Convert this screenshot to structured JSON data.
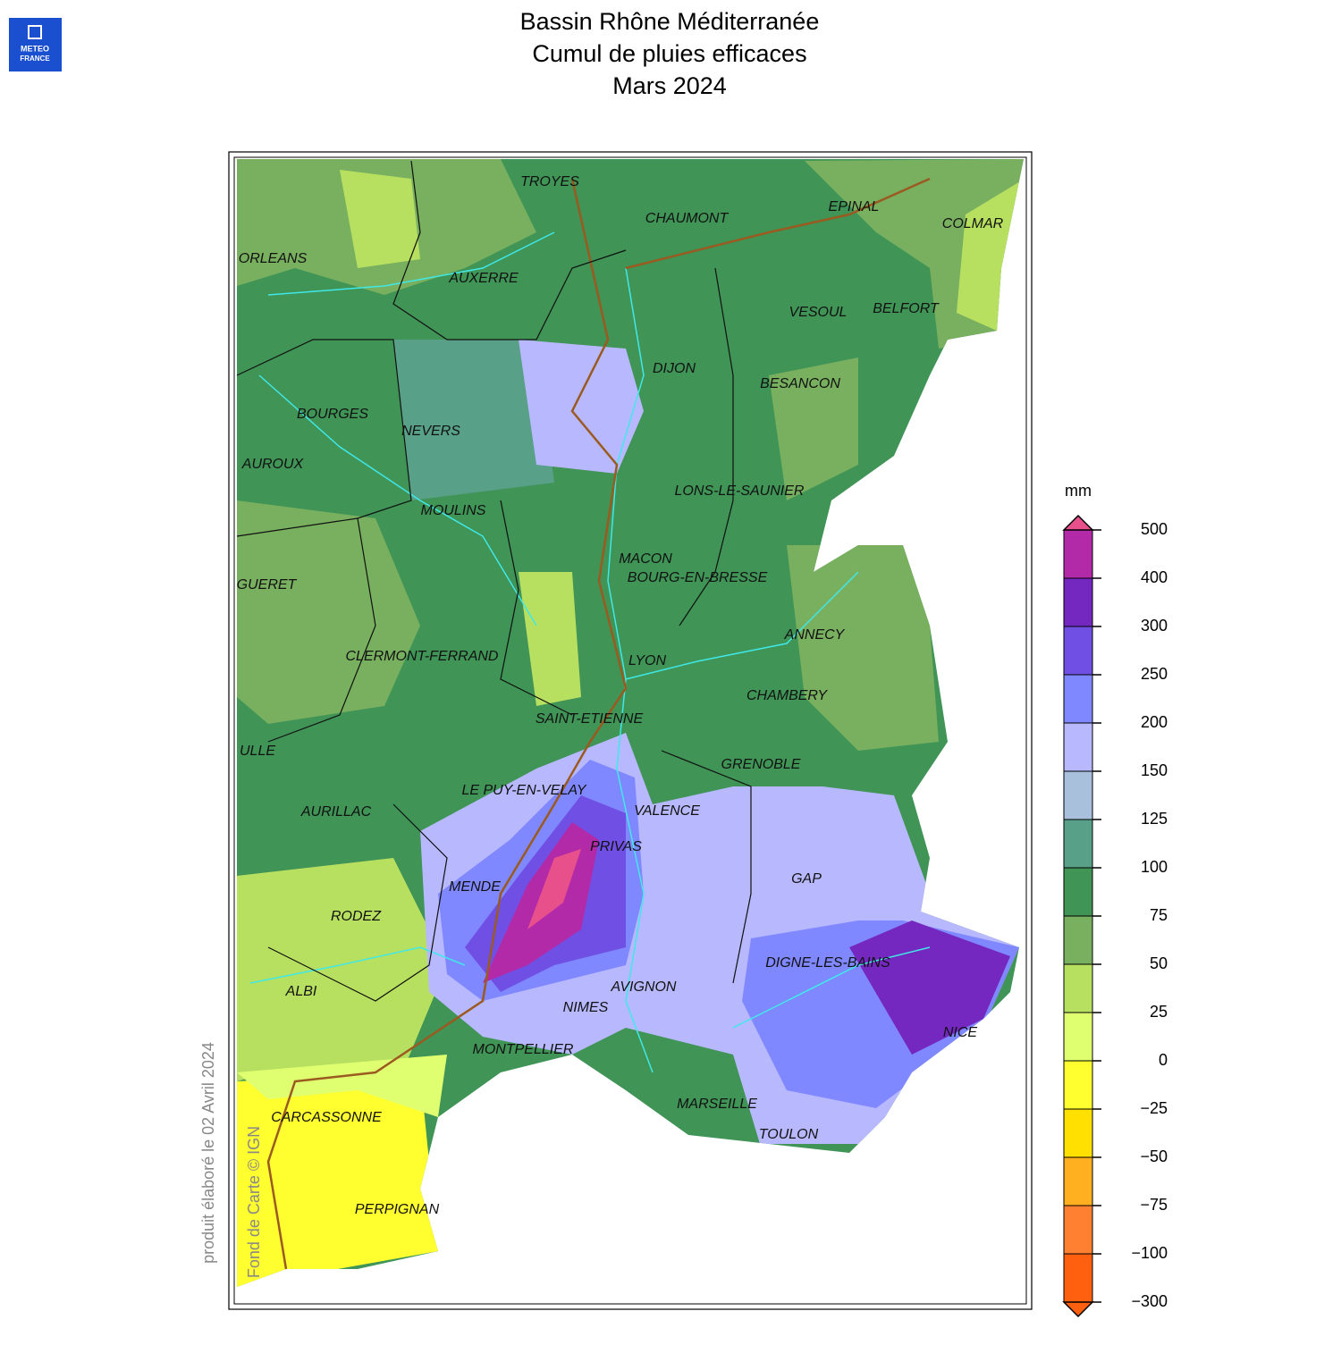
{
  "logo": [
    "METEO",
    "FRANCE"
  ],
  "title": [
    "Bassin Rhône Méditerranée",
    "Cumul de pluies efficaces",
    "Mars 2024"
  ],
  "cities": [
    "TROYES",
    "CHAUMONT",
    "EPINAL",
    "COLMAR",
    "ORLEANS",
    "AUXERRE",
    "VESOUL",
    "BELFORT",
    "DIJON",
    "BESANCON",
    "BOURGES",
    "NEVERS",
    "AUROUX",
    "LONS-LE-SAUNIER",
    "MOULINS",
    "MACON",
    "BOURG-EN-BRESSE",
    "GUERET",
    "ANNECY",
    "CLERMONT-FERRAND",
    "LYON",
    "CHAMBERY",
    "SAINT-ETIENNE",
    "ULLE",
    "GRENOBLE",
    "LE PUY-EN-VELAY",
    "AURILLAC",
    "VALENCE",
    "PRIVAS",
    "GAP",
    "MENDE",
    "RODEZ",
    "DIGNE-LES-BAINS",
    "AVIGNON",
    "ALBI",
    "NIMES",
    "NICE",
    "MONTPELLIER",
    "CARCASSONNE",
    "MARSEILLE",
    "TOULON",
    "PERPIGNAN"
  ],
  "legend": {
    "unit": "mm",
    "ticks": [
      500,
      400,
      300,
      250,
      200,
      150,
      125,
      100,
      75,
      50,
      25,
      0,
      {
        "value": -25,
        "label": "−25"
      },
      {
        "value": -50,
        "label": "−50"
      },
      {
        "value": -75,
        "label": "−75"
      },
      {
        "value": -100,
        "label": "−100"
      },
      {
        "value": -300,
        "label": "−300"
      }
    ],
    "colors": [
      "#b22aa8",
      "#7428c0",
      "#7050e4",
      "#8088ff",
      "#b8b8ff",
      "#a8c0dc",
      "#58a088",
      "#3f9456",
      "#78b060",
      "#b8e060",
      "#e0ff70",
      "#ffff30",
      "#ffe000",
      "#ffb020",
      "#ff8030",
      "#ff6010"
    ],
    "over_color": "#e8508c",
    "under_color": "#ff6010"
  },
  "credits": [
    "produit élaboré le 02 Avril 2024",
    "Fond de Carte © IGN"
  ]
}
